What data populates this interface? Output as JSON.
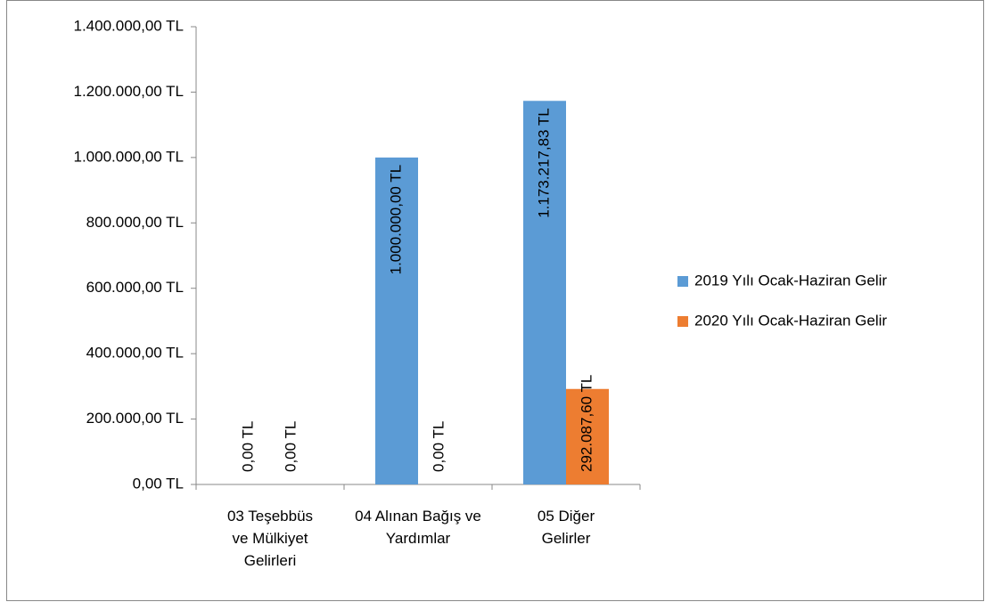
{
  "chart_data": {
    "type": "bar",
    "categories": [
      "03 Teşebbüs ve Mülkiyet Gelirleri",
      "04 Alınan Bağış ve Yardımlar",
      "05 Diğer Gelirler"
    ],
    "series": [
      {
        "name": "2019 Yılı Ocak-Haziran Gelir",
        "color": "#5b9bd5",
        "values": [
          0,
          1000000,
          1173217.83
        ],
        "value_labels": [
          "0,00 TL",
          "1.000.000,00 TL",
          "1.173.217,83 TL"
        ]
      },
      {
        "name": "2020 Yılı Ocak-Haziran Gelir",
        "color": "#ed7d31",
        "values": [
          0,
          0,
          292087.6
        ],
        "value_labels": [
          "0,00 TL",
          "0,00 TL",
          "292.087,60 TL"
        ]
      }
    ],
    "ylim": [
      0,
      1400000
    ],
    "yticks": [
      {
        "value": 0,
        "label": "0,00 TL"
      },
      {
        "value": 200000,
        "label": "200.000,00 TL"
      },
      {
        "value": 400000,
        "label": "400.000,00 TL"
      },
      {
        "value": 600000,
        "label": "600.000,00 TL"
      },
      {
        "value": 800000,
        "label": "800.000,00 TL"
      },
      {
        "value": 1000000,
        "label": "1.000.000,00 TL"
      },
      {
        "value": 1200000,
        "label": "1.200.000,00 TL"
      },
      {
        "value": 1400000,
        "label": "1.400.000,00 TL"
      }
    ],
    "grid": false,
    "legend": "right"
  }
}
